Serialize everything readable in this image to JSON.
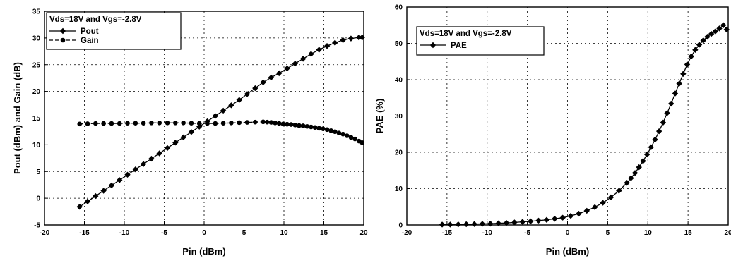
{
  "chart_data": [
    {
      "type": "line",
      "title": "",
      "xlabel": "Pin (dBm)",
      "ylabel": "Pout (dBm) and Gain (dB)",
      "xlim": [
        -20,
        20
      ],
      "ylim": [
        -5,
        35
      ],
      "xticks": [
        "-20",
        "-15",
        "-10",
        "-5",
        "0",
        "5",
        "10",
        "15",
        "20"
      ],
      "yticks": [
        "-5",
        "0",
        "5",
        "10",
        "15",
        "20",
        "25",
        "30",
        "35"
      ],
      "grid": true,
      "legend": {
        "position": "top-left",
        "heading": "Vds=18V and Vgs=-2.8V",
        "entries": [
          "Pout",
          "Gain"
        ]
      },
      "series": [
        {
          "name": "Pout",
          "marker": "diamond",
          "line": "solid",
          "x": [
            -15.6,
            -14.6,
            -13.6,
            -12.6,
            -11.6,
            -10.6,
            -9.6,
            -8.6,
            -7.6,
            -6.6,
            -5.6,
            -4.6,
            -3.6,
            -2.6,
            -1.6,
            -0.6,
            0.4,
            1.4,
            2.4,
            3.4,
            4.4,
            5.4,
            6.4,
            7.4,
            8.4,
            9.4,
            10.4,
            11.4,
            12.4,
            13.4,
            14.4,
            15.4,
            16.4,
            17.4,
            18.4,
            19.4,
            19.8
          ],
          "y": [
            -1.6,
            -0.6,
            0.4,
            1.4,
            2.4,
            3.4,
            4.4,
            5.4,
            6.4,
            7.4,
            8.4,
            9.4,
            10.4,
            11.4,
            12.4,
            13.4,
            14.4,
            15.4,
            16.4,
            17.4,
            18.4,
            19.5,
            20.6,
            21.7,
            22.6,
            23.4,
            24.3,
            25.2,
            26.1,
            27.0,
            27.8,
            28.5,
            29.1,
            29.6,
            29.9,
            30.1,
            30.1
          ]
        },
        {
          "name": "Gain",
          "marker": "circle",
          "line": "dashed",
          "x": [
            -15.6,
            -14.6,
            -13.6,
            -12.6,
            -11.6,
            -10.6,
            -9.6,
            -8.6,
            -7.6,
            -6.6,
            -5.6,
            -4.6,
            -3.6,
            -2.6,
            -1.6,
            -0.6,
            0.4,
            1.4,
            2.4,
            3.4,
            4.4,
            5.4,
            6.4,
            7.4,
            7.9,
            8.4,
            8.9,
            9.4,
            9.9,
            10.4,
            10.9,
            11.4,
            11.9,
            12.4,
            12.9,
            13.4,
            13.9,
            14.4,
            14.9,
            15.4,
            15.9,
            16.4,
            16.9,
            17.4,
            17.9,
            18.4,
            18.9,
            19.4,
            19.8
          ],
          "y": [
            13.9,
            13.95,
            14.0,
            14.0,
            14.0,
            14.0,
            14.05,
            14.05,
            14.05,
            14.1,
            14.1,
            14.1,
            14.1,
            14.1,
            14.05,
            14.0,
            14.0,
            14.0,
            14.05,
            14.1,
            14.15,
            14.2,
            14.25,
            14.3,
            14.25,
            14.2,
            14.1,
            14.0,
            13.9,
            13.85,
            13.8,
            13.7,
            13.6,
            13.55,
            13.45,
            13.35,
            13.25,
            13.1,
            13.0,
            12.85,
            12.65,
            12.45,
            12.2,
            12.0,
            11.7,
            11.4,
            11.1,
            10.7,
            10.4
          ]
        }
      ]
    },
    {
      "type": "line",
      "title": "",
      "xlabel": "Pin (dBm)",
      "ylabel": "PAE (%)",
      "xlim": [
        -20,
        20
      ],
      "ylim": [
        0,
        60
      ],
      "xticks": [
        "-20",
        "-15",
        "-10",
        "-5",
        "0",
        "5",
        "10",
        "15",
        "20"
      ],
      "yticks": [
        "0",
        "10",
        "20",
        "30",
        "40",
        "50",
        "60"
      ],
      "grid": true,
      "legend": {
        "position": "top-left",
        "heading": "Vds=18V and Vgs=-2.8V",
        "entries": [
          "PAE"
        ]
      },
      "series": [
        {
          "name": "PAE",
          "marker": "diamond",
          "line": "solid",
          "x": [
            -15.6,
            -14.6,
            -13.6,
            -12.6,
            -11.6,
            -10.6,
            -9.6,
            -8.6,
            -7.6,
            -6.6,
            -5.6,
            -4.6,
            -3.6,
            -2.6,
            -1.6,
            -0.6,
            0.4,
            1.4,
            2.4,
            3.4,
            4.4,
            5.4,
            6.4,
            7.4,
            7.9,
            8.4,
            8.9,
            9.4,
            9.9,
            10.4,
            10.9,
            11.4,
            11.9,
            12.4,
            12.9,
            13.4,
            13.9,
            14.4,
            14.9,
            15.4,
            15.9,
            16.4,
            16.9,
            17.4,
            17.9,
            18.4,
            18.9,
            19.4,
            19.8
          ],
          "y": [
            0.1,
            0.1,
            0.15,
            0.2,
            0.25,
            0.3,
            0.35,
            0.45,
            0.55,
            0.7,
            0.85,
            1.0,
            1.2,
            1.4,
            1.7,
            2.0,
            2.5,
            3.1,
            3.9,
            4.9,
            6.1,
            7.6,
            9.4,
            11.6,
            12.9,
            14.3,
            15.9,
            17.6,
            19.4,
            21.4,
            23.5,
            25.8,
            28.2,
            30.8,
            33.4,
            36.2,
            38.9,
            41.6,
            44.2,
            46.4,
            48.2,
            49.6,
            50.8,
            51.8,
            52.6,
            53.3,
            54.1,
            55.0,
            53.8
          ]
        }
      ]
    }
  ]
}
